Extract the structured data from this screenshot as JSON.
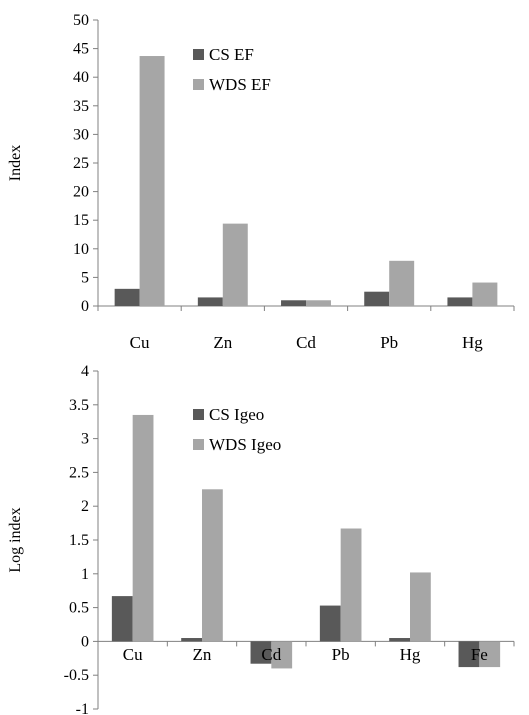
{
  "colors": {
    "cs": "#595959",
    "wds": "#a6a6a6",
    "axis": "#808080"
  },
  "chart_data": [
    {
      "type": "bar",
      "categories": [
        "Cu",
        "Zn",
        "Cd",
        "Pb",
        "Hg"
      ],
      "series": [
        {
          "name": "CS EF",
          "values": [
            3.0,
            1.5,
            1.0,
            2.5,
            1.5
          ]
        },
        {
          "name": "WDS EF",
          "values": [
            43.7,
            14.4,
            1.0,
            7.9,
            4.1
          ]
        }
      ],
      "ylabel": "Index",
      "ylim": [
        0,
        50
      ],
      "yticks": [
        0,
        5,
        10,
        15,
        20,
        25,
        30,
        35,
        40,
        45,
        50
      ],
      "grid": false,
      "legend": "top-left"
    },
    {
      "type": "bar",
      "categories": [
        "Cu",
        "Zn",
        "Cd",
        "Pb",
        "Hg",
        "Fe"
      ],
      "series": [
        {
          "name": "CS Igeo",
          "values": [
            0.67,
            0.05,
            -0.33,
            0.53,
            0.05,
            -0.38
          ]
        },
        {
          "name": "WDS Igeo",
          "values": [
            3.35,
            2.25,
            -0.4,
            1.67,
            1.02,
            -0.38
          ]
        }
      ],
      "ylabel": "Log index",
      "ylim": [
        -1,
        4
      ],
      "yticks": [
        -1,
        -0.5,
        0,
        0.5,
        1,
        1.5,
        2,
        2.5,
        3,
        3.5,
        4
      ],
      "grid": false,
      "legend": "top-left"
    }
  ]
}
